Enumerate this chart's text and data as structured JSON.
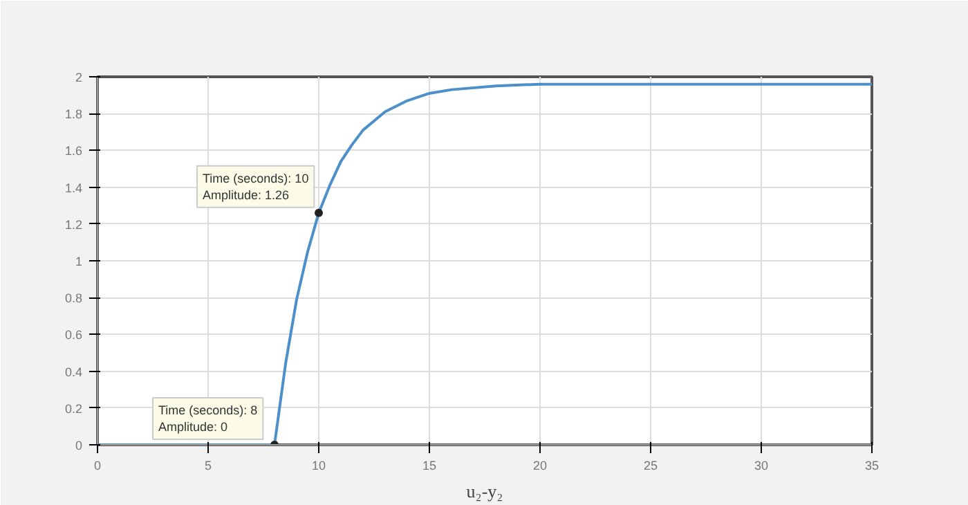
{
  "chart_data": {
    "type": "line",
    "xlabel": "u₂-y₂",
    "x": [
      0,
      8,
      8.5,
      9,
      9.5,
      10,
      10.5,
      11,
      11.5,
      12,
      13,
      14,
      15,
      16,
      18,
      20,
      25,
      30,
      35
    ],
    "series": [
      {
        "color": "#4d8fc9",
        "values": [
          0,
          0,
          0.44,
          0.79,
          1.05,
          1.26,
          1.41,
          1.54,
          1.63,
          1.71,
          1.81,
          1.87,
          1.91,
          1.93,
          1.95,
          1.96,
          1.96,
          1.96,
          1.96
        ]
      }
    ],
    "xlim": [
      0,
      35
    ],
    "ylim": [
      0,
      2
    ],
    "xticks": [
      0,
      5,
      10,
      15,
      20,
      25,
      30,
      35
    ],
    "yticks": [
      0,
      0.2,
      0.4,
      0.6,
      0.8,
      1,
      1.2,
      1.4,
      1.6,
      1.8,
      2
    ],
    "grid": true,
    "marker": "none",
    "line_style": "solid",
    "annotations": [
      {
        "text": "Time (seconds): 10\nAmplitude: 1.26",
        "x": 10,
        "y": 1.26
      },
      {
        "text": "Time (seconds): 8\nAmplitude: 0",
        "x": 8,
        "y": 0
      }
    ]
  }
}
